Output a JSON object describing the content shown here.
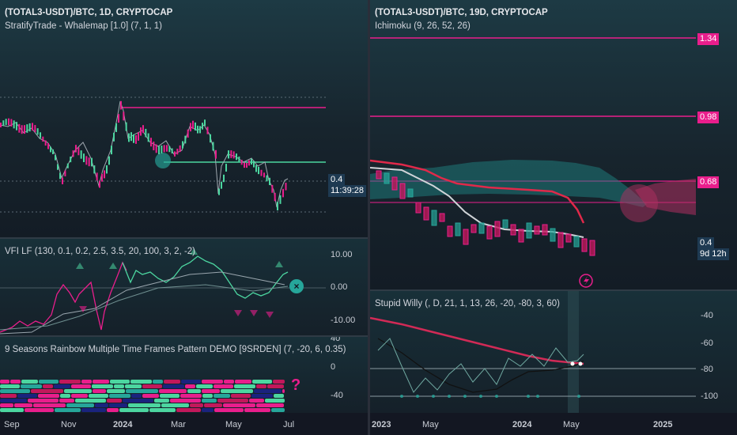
{
  "left": {
    "main": {
      "title": "(TOTAL3-USDT)/BTC, 1D, CRYPTOCAP",
      "indicator": "StratifyTrade - Whalemap [1.0] (7, 1, 1)",
      "price_tag": "0.4",
      "countdown_tag": "11:39:28"
    },
    "vfi": {
      "title": "VFI LF (130, 0.1, 0.2, 2.5, 3.5, 20, 100, 3, 2, -2)",
      "ticks": [
        "10.00",
        "0.00",
        "-10.00"
      ],
      "close_icon": "close-circle-icon"
    },
    "rainbow": {
      "title": "9 Seasons Rainbow Multiple Time Frames Pattern DEMO [9SRDEN] (7, -20, 6, 0.35)",
      "ticks": [
        "40",
        "0",
        "-40"
      ],
      "question_glyph": "?"
    },
    "x_axis": [
      "Sep",
      "Nov",
      "2024",
      "Mar",
      "May",
      "Jul"
    ]
  },
  "right": {
    "main": {
      "title": "(TOTAL3-USDT)/BTC, 19D, CRYPTOCAP",
      "indicator": "Ichimoku (9, 26, 52, 26)",
      "levels": [
        "1.34",
        "0.98",
        "0.68"
      ],
      "price_tag": "0.4",
      "countdown_tag": "9d 12h",
      "flash_icon": "lightning-icon"
    },
    "willy": {
      "title": "Stupid Willy (, D, 21, 1, 13, 26, -20, -80, 3, 60)",
      "ticks": [
        "-40",
        "-60",
        "-80",
        "-100"
      ]
    },
    "x_axis": [
      "2023",
      "May",
      "2024",
      "May",
      "2025"
    ]
  },
  "colors": {
    "magenta": "#e91e8c",
    "green": "#26a69a",
    "bright_green": "#4cd6a0",
    "red_line": "#e0294a",
    "tag_blue": "#1e3a52",
    "cloud_green": "#1f7a7a",
    "cloud_pink": "#b03060"
  }
}
